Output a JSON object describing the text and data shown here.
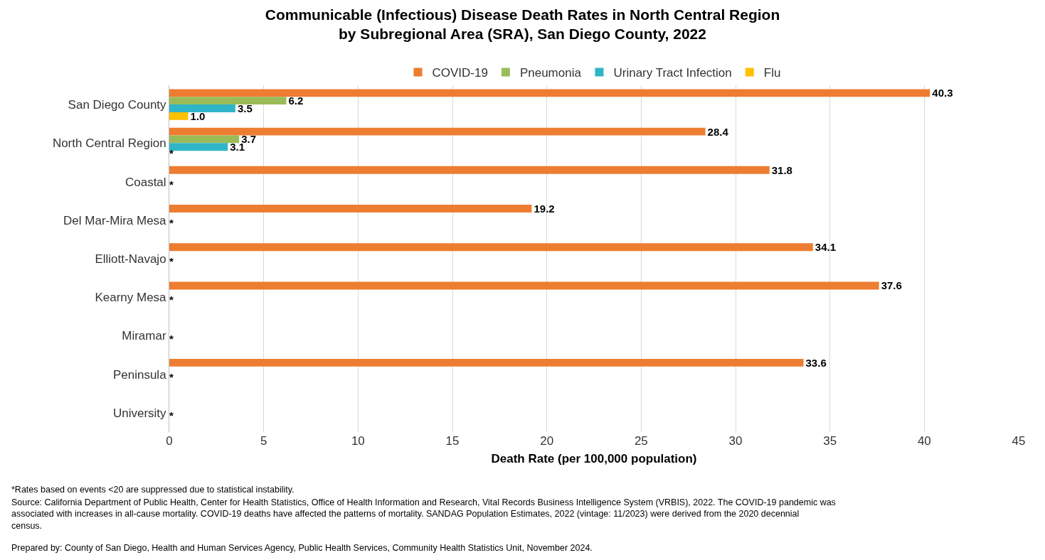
{
  "chart_data": {
    "type": "bar",
    "orientation": "horizontal",
    "title": "Communicable (Infectious) Disease Death Rates in North Central Region\nby Subregional Area (SRA), San Diego County, 2022",
    "xlabel": "Death Rate (per 100,000 population)",
    "categories": [
      "San Diego County",
      "North Central Region",
      "Coastal",
      "Del Mar-Mira Mesa",
      "Elliott-Navajo",
      "Kearny Mesa",
      "Miramar",
      "Peninsula",
      "University"
    ],
    "series": [
      {
        "name": "COVID-19",
        "color": "#ed7d31",
        "values": [
          40.3,
          28.4,
          31.8,
          19.2,
          34.1,
          37.6,
          null,
          33.6,
          null
        ],
        "value_labels": [
          "40.3",
          "28.4",
          "31.8",
          "19.2",
          "34.1",
          "37.6",
          null,
          "33.6",
          null
        ]
      },
      {
        "name": "Pneumonia",
        "color": "#9bbb59",
        "values": [
          6.2,
          3.7,
          null,
          null,
          null,
          null,
          null,
          null,
          null
        ],
        "value_labels": [
          "6.2",
          "3.7",
          null,
          null,
          null,
          null,
          null,
          null,
          null
        ]
      },
      {
        "name": "Urinary Tract Infection",
        "color": "#2fb5c8",
        "values": [
          3.5,
          3.1,
          null,
          null,
          null,
          null,
          null,
          null,
          null
        ],
        "value_labels": [
          "3.5",
          "3.1",
          "*",
          "*",
          "*",
          "*",
          "*",
          "*",
          "*"
        ]
      },
      {
        "name": "Flu",
        "color": "#ffc000",
        "values": [
          1.0,
          null,
          null,
          null,
          null,
          null,
          null,
          null,
          null
        ],
        "value_labels": [
          "1.0",
          "*",
          null,
          null,
          null,
          null,
          null,
          null,
          null
        ]
      }
    ],
    "xlim": [
      0,
      45
    ],
    "xticks": [
      0,
      5,
      10,
      15,
      20,
      25,
      30,
      35,
      40,
      45
    ],
    "grid": "x",
    "legend": "top",
    "annotations": [
      "*Rates based on events <20 are suppressed due to statistical instability.",
      "Source: California Department of Public Health, Center for Health Statistics, Office of Health Information and Research, Vital Records Business Intelligence System (VRBIS), 2022. The COVID-19 pandemic was\nassociated with increases in all-cause mortality. COVID-19 deaths have affected the patterns of mortality. SANDAG Population Estimates, 2022 (vintage: 11/2023) were derived from the 2020 decennial\ncensus.",
      "Prepared by: County of San Diego, Health and Human Services Agency, Public Health Services, Community Health Statistics Unit, November 2024."
    ]
  }
}
